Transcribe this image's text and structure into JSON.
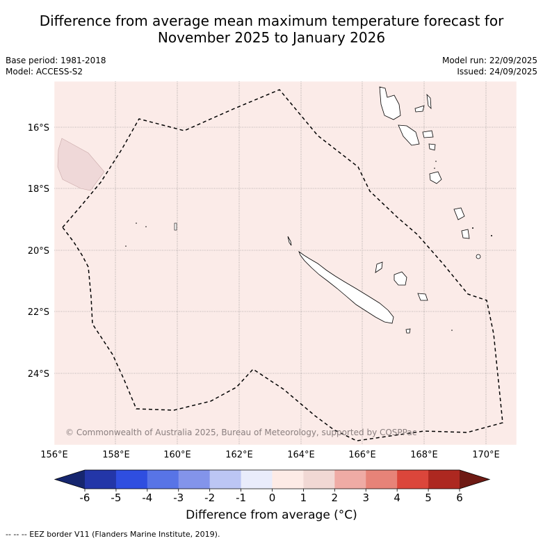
{
  "title": {
    "line1": "Difference from average mean maximum temperature forecast for",
    "line2": "November 2025 to January 2026"
  },
  "meta": {
    "base_period": "Base period: 1981-2018",
    "model": "Model: ACCESS-S2",
    "model_run": "Model run: 22/09/2025",
    "issued": "Issued: 24/09/2025"
  },
  "map": {
    "background_color": "#fbebe8",
    "shaded_patch_color": "#efd8d8",
    "copyright": "© Commonwealth of Australia 2025, Bureau of Meteorology, supported by COSPPac",
    "lat_labels": [
      "16°S",
      "18°S",
      "20°S",
      "22°S",
      "24°S"
    ],
    "lon_labels": [
      "156°E",
      "158°E",
      "160°E",
      "162°E",
      "164°E",
      "166°E",
      "168°E",
      "170°E"
    ]
  },
  "colorbar": {
    "ticks": [
      "-6",
      "-5",
      "-4",
      "-3",
      "-2",
      "-1",
      "0",
      "1",
      "2",
      "3",
      "4",
      "5",
      "6"
    ],
    "colors": [
      "#2336a8",
      "#2f4ee0",
      "#5874e6",
      "#8394ea",
      "#bcc6f4",
      "#e9ecfb",
      "#fdebe6",
      "#f1d8d4",
      "#efaba5",
      "#e78378",
      "#db463b",
      "#ad2820"
    ],
    "low_extend_color": "#16266f",
    "high_extend_color": "#6e1a14",
    "label": "Difference from average (°C)"
  },
  "footnote": "-- -- -- EEZ border V11 (Flanders Marine Institute, 2019)."
}
